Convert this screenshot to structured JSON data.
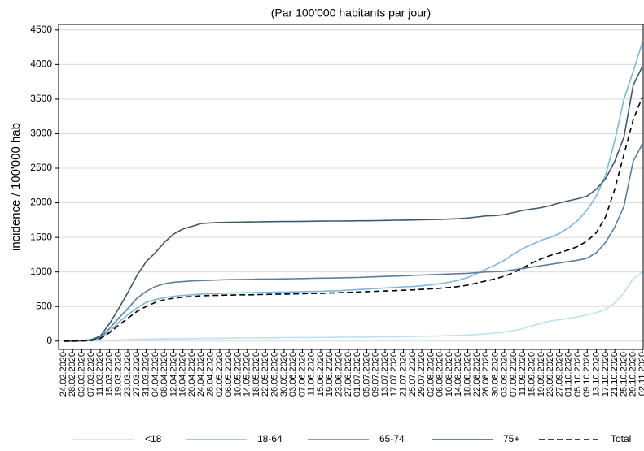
{
  "chart_data": {
    "type": "line",
    "title": "(Par 100'000 habitants par jour)",
    "y_label": "incidence / 100'000 hab",
    "categories": [
      "24.02.2020",
      "28.02.2020",
      "03.03.2020",
      "07.03.2020",
      "11.03.2020",
      "15.03.2020",
      "19.03.2020",
      "23.03.2020",
      "27.03.2020",
      "31.03.2020",
      "04.04.2020",
      "08.04.2020",
      "12.04.2020",
      "16.04.2020",
      "20.04.2020",
      "24.04.2020",
      "28.04.2020",
      "02.05.2020",
      "06.05.2020",
      "10.05.2020",
      "14.05.2020",
      "18.05.2020",
      "22.05.2020",
      "26.05.2020",
      "30.05.2020",
      "03.06.2020",
      "07.06.2020",
      "11.06.2020",
      "15.06.2020",
      "19.06.2020",
      "23.06.2020",
      "27.06.2020",
      "01.07.2020",
      "05.07.2020",
      "09.07.2020",
      "13.07.2020",
      "17.07.2020",
      "21.07.2020",
      "25.07.2020",
      "29.07.2020",
      "02.08.2020",
      "06.08.2020",
      "10.08.2020",
      "14.08.2020",
      "18.08.2020",
      "22.08.2020",
      "26.08.2020",
      "30.08.2020",
      "03.09.2020",
      "07.09.2020",
      "11.09.2020",
      "15.09.2020",
      "19.09.2020",
      "23.09.2020",
      "27.09.2020",
      "01.10.2020",
      "05.10.2020",
      "09.10.2020",
      "13.10.2020",
      "17.10.2020",
      "21.10.2020",
      "25.10.2020",
      "29.10.2020",
      "02.11.2020"
    ],
    "series": [
      {
        "name": "<18",
        "color": "#bfe0f3",
        "values": [
          0,
          0,
          1,
          2,
          5,
          10,
          15,
          20,
          25,
          28,
          30,
          32,
          34,
          35,
          36,
          37,
          38,
          40,
          42,
          43,
          45,
          46,
          47,
          48,
          50,
          50,
          51,
          52,
          53,
          54,
          55,
          56,
          57,
          58,
          60,
          62,
          63,
          65,
          68,
          70,
          72,
          75,
          78,
          82,
          88,
          95,
          105,
          115,
          130,
          150,
          180,
          220,
          260,
          290,
          310,
          330,
          350,
          380,
          410,
          460,
          550,
          700,
          900,
          1000
        ]
      },
      {
        "name": "18-64",
        "color": "#7db7dc",
        "values": [
          0,
          0,
          3,
          10,
          40,
          140,
          270,
          380,
          480,
          560,
          600,
          630,
          650,
          660,
          670,
          680,
          685,
          690,
          695,
          698,
          700,
          702,
          705,
          708,
          710,
          712,
          715,
          718,
          720,
          725,
          730,
          738,
          745,
          752,
          760,
          768,
          775,
          785,
          790,
          800,
          815,
          830,
          850,
          880,
          920,
          980,
          1040,
          1100,
          1170,
          1260,
          1340,
          1400,
          1460,
          1500,
          1560,
          1640,
          1750,
          1900,
          2100,
          2400,
          2900,
          3500,
          3900,
          4320
        ]
      },
      {
        "name": "65-74",
        "color": "#5b7f98",
        "values": [
          0,
          0,
          3,
          15,
          50,
          180,
          330,
          470,
          620,
          720,
          790,
          830,
          850,
          860,
          870,
          875,
          880,
          885,
          888,
          890,
          892,
          895,
          897,
          898,
          900,
          902,
          905,
          908,
          910,
          912,
          915,
          918,
          920,
          925,
          930,
          935,
          940,
          945,
          950,
          955,
          960,
          965,
          970,
          975,
          980,
          990,
          1000,
          1005,
          1010,
          1030,
          1050,
          1070,
          1090,
          1110,
          1130,
          1150,
          1170,
          1200,
          1280,
          1430,
          1650,
          1950,
          2600,
          2850
        ]
      },
      {
        "name": "75+",
        "color": "#3e5a6f",
        "values": [
          0,
          0,
          5,
          20,
          70,
          250,
          470,
          700,
          950,
          1150,
          1280,
          1430,
          1550,
          1620,
          1660,
          1700,
          1710,
          1715,
          1718,
          1720,
          1722,
          1725,
          1727,
          1728,
          1730,
          1730,
          1732,
          1733,
          1735,
          1736,
          1737,
          1738,
          1740,
          1740,
          1742,
          1745,
          1748,
          1750,
          1752,
          1755,
          1758,
          1760,
          1765,
          1770,
          1780,
          1795,
          1810,
          1815,
          1830,
          1860,
          1890,
          1910,
          1930,
          1960,
          2000,
          2030,
          2060,
          2100,
          2200,
          2350,
          2600,
          2950,
          3700,
          3970
        ]
      },
      {
        "name": "Total",
        "color": "#000000",
        "line_style": "dashed",
        "values": [
          0,
          0,
          2,
          8,
          35,
          120,
          230,
          330,
          430,
          500,
          560,
          600,
          620,
          635,
          645,
          655,
          660,
          662,
          665,
          668,
          670,
          672,
          675,
          678,
          680,
          682,
          685,
          688,
          690,
          695,
          700,
          705,
          710,
          715,
          720,
          725,
          730,
          735,
          740,
          748,
          755,
          765,
          775,
          790,
          810,
          840,
          870,
          900,
          940,
          990,
          1060,
          1130,
          1190,
          1240,
          1280,
          1320,
          1370,
          1450,
          1570,
          1800,
          2200,
          2700,
          3200,
          3530
        ]
      }
    ],
    "ylim": [
      -120,
      4580
    ],
    "yticks": [
      0,
      500,
      1000,
      1500,
      2000,
      2500,
      3000,
      3500,
      4000,
      4500
    ],
    "grid": true,
    "legend": "bottom"
  }
}
